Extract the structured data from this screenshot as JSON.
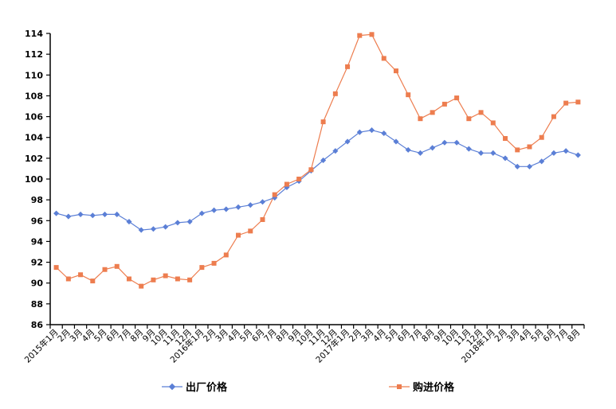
{
  "chart_data": {
    "type": "line",
    "categories": [
      "2015年1月",
      "2月",
      "3月",
      "4月",
      "5月",
      "6月",
      "7月",
      "8月",
      "9月",
      "10月",
      "11月",
      "12月",
      "2016年1月",
      "2月",
      "3月",
      "4月",
      "5月",
      "6月",
      "7月",
      "8月",
      "9月",
      "10月",
      "11月",
      "12月",
      "2017年1月",
      "2月",
      "3月",
      "4月",
      "5月",
      "6月",
      "7月",
      "8月",
      "9月",
      "10月",
      "11月",
      "12月",
      "2018年1月",
      "2月",
      "3月",
      "4月",
      "5月",
      "6月",
      "7月",
      "8月"
    ],
    "series": [
      {
        "name": "出厂价格",
        "color": "#5b7fd6",
        "marker": "diamond",
        "values": [
          96.7,
          96.4,
          96.6,
          96.5,
          96.6,
          96.6,
          95.9,
          95.1,
          95.2,
          95.4,
          95.8,
          95.9,
          96.7,
          97.0,
          97.1,
          97.3,
          97.5,
          97.8,
          98.2,
          99.2,
          99.8,
          100.8,
          101.8,
          102.7,
          103.6,
          104.5,
          104.7,
          104.4,
          103.6,
          102.8,
          102.5,
          103.0,
          103.5,
          103.5,
          102.9,
          102.5,
          102.5,
          102.0,
          101.2,
          101.2,
          101.7,
          102.5,
          102.7,
          102.3
        ]
      },
      {
        "name": "购进价格",
        "color": "#ed7d4f",
        "marker": "square",
        "values": [
          91.5,
          90.4,
          90.8,
          90.2,
          91.3,
          91.6,
          90.4,
          89.7,
          90.3,
          90.7,
          90.4,
          90.3,
          91.5,
          91.9,
          92.7,
          94.6,
          95.0,
          96.1,
          98.5,
          99.5,
          100.0,
          100.9,
          105.5,
          108.2,
          110.8,
          113.8,
          113.9,
          111.6,
          110.4,
          108.1,
          105.8,
          106.4,
          107.2,
          107.8,
          105.8,
          106.4,
          105.4,
          103.9,
          102.8,
          103.1,
          104.0,
          106.0,
          107.3,
          107.4
        ]
      }
    ],
    "ylim": [
      86,
      114
    ],
    "yticks": [
      86,
      88,
      90,
      92,
      94,
      96,
      98,
      100,
      102,
      104,
      106,
      108,
      110,
      112,
      114
    ],
    "grid": false,
    "legend_position": "bottom"
  }
}
